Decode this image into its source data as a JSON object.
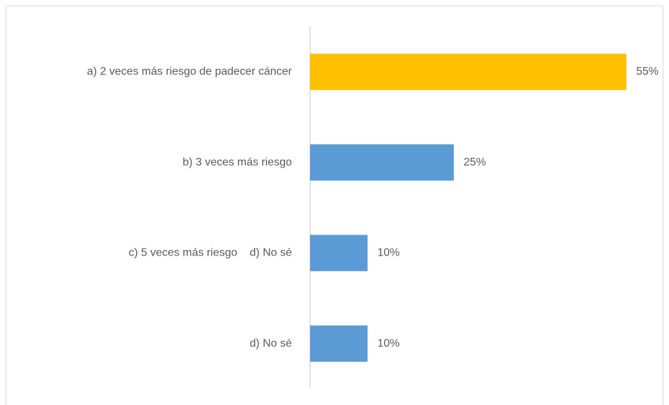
{
  "chart_data": {
    "type": "barh",
    "categories": [
      "a) 2 veces más riesgo de padecer cáncer",
      "b) 3 veces más riesgo",
      "c) 5 veces más riesgo    d) No sé",
      "d) No sé"
    ],
    "values": [
      55,
      25,
      10,
      10
    ],
    "value_labels": [
      "55%",
      "25%",
      "10%",
      "10%"
    ],
    "colors": [
      "#ffc000",
      "#5b9bd5",
      "#5b9bd5",
      "#5b9bd5"
    ]
  }
}
